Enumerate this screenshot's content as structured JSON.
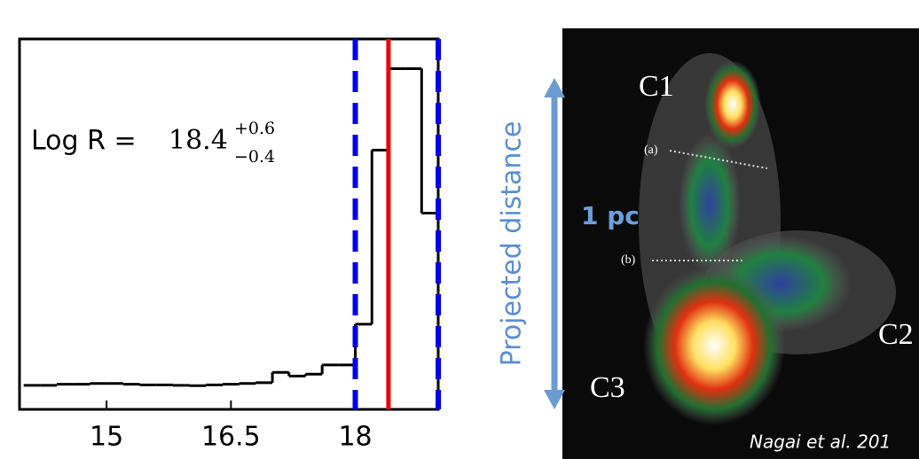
{
  "chart_data": {
    "type": "histogram",
    "bins": [
      14.0,
      14.2,
      14.4,
      14.6,
      14.8,
      15.0,
      15.2,
      15.4,
      15.6,
      15.8,
      16.0,
      16.2,
      16.4,
      16.6,
      16.8,
      17.0,
      17.2,
      17.4,
      17.6,
      17.8,
      18.0,
      18.2,
      18.4,
      18.6,
      18.8,
      19.0
    ],
    "counts": [
      0.065,
      0.065,
      0.068,
      0.068,
      0.07,
      0.07,
      0.068,
      0.066,
      0.066,
      0.065,
      0.064,
      0.066,
      0.068,
      0.07,
      0.072,
      0.1,
      0.09,
      0.095,
      0.12,
      0.12,
      0.23,
      0.7,
      0.92,
      0.92,
      0.53
    ],
    "color": "#000000",
    "xlim": [
      13.95,
      19.0
    ],
    "ylim": [
      0,
      1
    ],
    "xticks": [
      15,
      16.5,
      18
    ],
    "vlines": [
      {
        "value": 18.0,
        "color": "#0000ee",
        "style": "dashed"
      },
      {
        "value": 18.4,
        "color": "#ee0000",
        "style": "solid"
      },
      {
        "value": 19.0,
        "color": "#0000ee",
        "style": "dashed"
      }
    ],
    "annotation": {
      "lead": "Log R = ",
      "value": "18.4",
      "upper": "+0.6",
      "lower": "−0.4"
    }
  },
  "image": {
    "axis_label": "Projected distance",
    "scale": "1 pc",
    "labels": [
      "C1",
      "C2",
      "C3",
      "(a)",
      "(b)"
    ],
    "credit": "Nagai et al. 201"
  }
}
